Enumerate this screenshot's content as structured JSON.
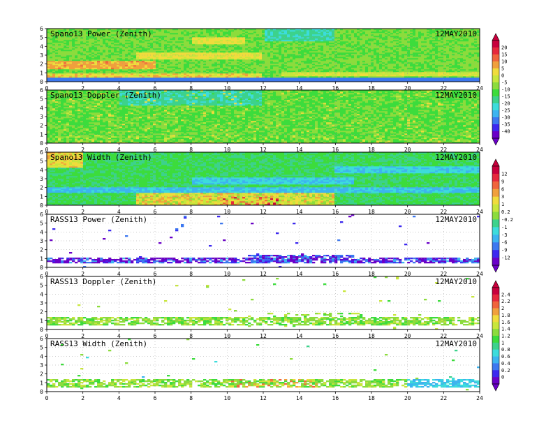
{
  "chart_data": {
    "type": "heatmap",
    "x_axis": {
      "range": [
        0,
        24
      ],
      "ticks": [
        0,
        2,
        4,
        6,
        8,
        10,
        12,
        14,
        16,
        18,
        20,
        22,
        24
      ]
    },
    "y_axis": {
      "range": [
        0,
        6
      ],
      "ticks": [
        0,
        1,
        2,
        3,
        4,
        5,
        6
      ]
    },
    "grid": true,
    "panels": [
      {
        "title": "Spano13 Power (Zenith)",
        "date": "12MAY2010",
        "colorbar": 0,
        "style": "spano_power"
      },
      {
        "title": "Spano13 Doppler (Zenith)",
        "date": "12MAY2010",
        "colorbar": 0,
        "style": "spano_doppler"
      },
      {
        "title": "Spano13 Width (Zenith)",
        "date": "12MAY2010",
        "colorbar": 1,
        "style": "spano_width"
      },
      {
        "title": "RASS13 Power (Zenith)",
        "date": "12MAY2010",
        "colorbar": 1,
        "style": "rass_power"
      },
      {
        "title": "RASS13 Doppler (Zenith)",
        "date": "12MAY2010",
        "colorbar": 2,
        "style": "rass_doppler"
      },
      {
        "title": "RASS13 Width (Zenith)",
        "date": "12MAY2010",
        "colorbar": 2,
        "style": "rass_width"
      }
    ],
    "colorbars": [
      {
        "labels": [
          "20",
          "15",
          "10",
          "5",
          "0",
          "-5",
          "-10",
          "-15",
          "-20",
          "-25",
          "-30",
          "-35",
          "-40"
        ]
      },
      {
        "labels": [
          "12",
          "9",
          "6",
          "3",
          "1",
          "0.2",
          "-0.2",
          "-1",
          "-3",
          "-6",
          "-9",
          "-12"
        ]
      },
      {
        "labels": [
          "2.4",
          "2.2",
          "2",
          "1.8",
          "1.6",
          "1.4",
          "1.2",
          "1",
          "0.8",
          "0.6",
          "0.4",
          "0.2",
          "0"
        ]
      }
    ],
    "palette": [
      "#6a00c8",
      "#3c28f0",
      "#3c78f0",
      "#3cb4f0",
      "#3cdcdc",
      "#3cd28c",
      "#3cdc3c",
      "#8cdc3c",
      "#c8e63c",
      "#f0dc3c",
      "#f0a03c",
      "#f0643c",
      "#e6283c",
      "#c8003c"
    ]
  }
}
